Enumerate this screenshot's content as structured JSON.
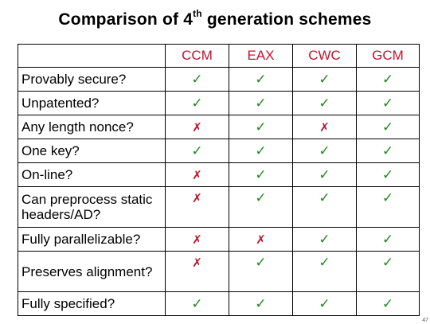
{
  "title": {
    "prefix": "Comparison of 4",
    "superscript": "th",
    "suffix": " generation schemes"
  },
  "schemes": [
    "CCM",
    "EAX",
    "CWC",
    "GCM"
  ],
  "symbols": {
    "yes": "✓",
    "no": "✗"
  },
  "colors": {
    "header_text": "#c8102e",
    "check": "#1f8a1f",
    "cross": "#c0102a"
  },
  "rows": [
    {
      "feature": "Provably secure?",
      "values": [
        "yes",
        "yes",
        "yes",
        "yes"
      ]
    },
    {
      "feature": "Unpatented?",
      "values": [
        "yes",
        "yes",
        "yes",
        "yes"
      ]
    },
    {
      "feature": "Any length nonce?",
      "values": [
        "no",
        "yes",
        "no",
        "yes"
      ]
    },
    {
      "feature": "One key?",
      "values": [
        "yes",
        "yes",
        "yes",
        "yes"
      ]
    },
    {
      "feature": "On-line?",
      "values": [
        "no",
        "yes",
        "yes",
        "yes"
      ]
    },
    {
      "feature": "Can preprocess static headers/AD?",
      "values": [
        "no",
        "yes",
        "yes",
        "yes"
      ]
    },
    {
      "feature": "Fully parallelizable?",
      "values": [
        "no",
        "no",
        "yes",
        "yes"
      ]
    },
    {
      "feature": "Preserves alignment?",
      "values": [
        "no",
        "yes",
        "yes",
        "yes"
      ]
    },
    {
      "feature": "Fully specified?",
      "values": [
        "yes",
        "yes",
        "yes",
        "yes"
      ]
    }
  ],
  "page_number": "47"
}
